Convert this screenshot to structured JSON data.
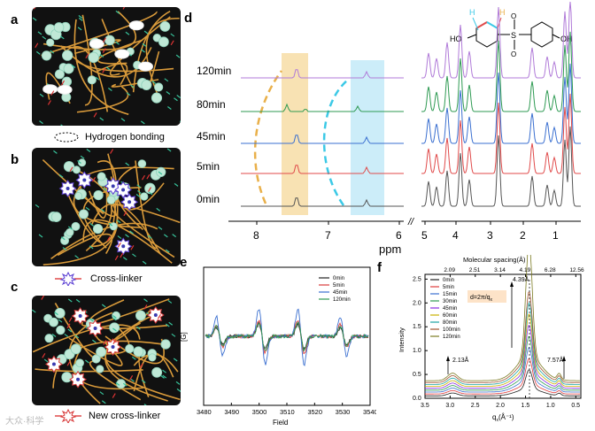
{
  "panels": {
    "a": {
      "letter": "a",
      "legend": "Hydrogen bonding",
      "oh": "OH"
    },
    "b": {
      "letter": "b",
      "legend": "Cross-linker"
    },
    "c": {
      "letter": "c",
      "legend": "New cross-linker"
    },
    "d": {
      "letter": "d",
      "xlabel": "ppm",
      "xticks_left": [
        "8",
        "7",
        "6",
        "5"
      ],
      "xticks_right": [
        "5",
        "4",
        "3",
        "2",
        "1"
      ],
      "times": [
        "120min",
        "80min",
        "45min",
        "5min",
        "0min"
      ],
      "molecule": {
        "h1": "H",
        "h2": "H",
        "ho": "HO",
        "oh": "OH",
        "s": "S",
        "o1": "O",
        "o2": "O"
      }
    },
    "e": {
      "letter": "e",
      "ylabel": "[G]",
      "xlabel": "Field",
      "xticks": [
        "3480",
        "3490",
        "3500",
        "3510",
        "3520",
        "3530",
        "3540"
      ],
      "legend": [
        "0min",
        "5min",
        "45min",
        "120min"
      ]
    },
    "f": {
      "letter": "f",
      "ylabel": "Intensity",
      "xlabel": "q",
      "xlabel_sub": "x",
      "xlabel_unit": "(Å⁻¹)",
      "top_label": "Molecular spacing(Å)",
      "top_ticks": [
        "2.09",
        "2.51",
        "3.14",
        "4.19",
        "6.28",
        "12.56"
      ],
      "xticks": [
        "3.5",
        "3.0",
        "2.5",
        "2.0",
        "1.5",
        "1.0",
        "0.5"
      ],
      "yticks": [
        "0.0",
        "0.5",
        "1.0",
        "1.5",
        "2.0",
        "2.5"
      ],
      "legend": [
        "0min",
        "5min",
        "15min",
        "30min",
        "45min",
        "60min",
        "80min",
        "100min",
        "120min"
      ],
      "formula_d": "d=2π/q",
      "formula_sub": "x",
      "annotations": [
        "4.39Å",
        "2.13Å",
        "7.57Å"
      ]
    }
  },
  "watermark": "大众·科学",
  "colors": {
    "orange": "#e9b04a",
    "cyan": "#3cc9e6",
    "gray": "#555",
    "red": "#e04a4a",
    "blue": "#3a6fd0",
    "green": "#2e9a52",
    "purple": "#b07ad8"
  },
  "chart_data": [
    {
      "type": "line",
      "panel": "d",
      "series": [
        {
          "name": "120min"
        },
        {
          "name": "80min"
        },
        {
          "name": "45min"
        },
        {
          "name": "5min"
        },
        {
          "name": "0min"
        }
      ],
      "xlabel": "ppm",
      "xlim": [
        8.4,
        1
      ]
    },
    {
      "type": "line",
      "panel": "e",
      "series": [
        {
          "name": "0min"
        },
        {
          "name": "5min"
        },
        {
          "name": "45min"
        },
        {
          "name": "120min"
        }
      ],
      "xlabel": "Field",
      "ylabel": "[G]",
      "xlim": [
        3480,
        3540
      ]
    },
    {
      "type": "line",
      "panel": "f",
      "series": [
        {
          "name": "0min"
        },
        {
          "name": "5min"
        },
        {
          "name": "15min"
        },
        {
          "name": "30min"
        },
        {
          "name": "45min"
        },
        {
          "name": "60min"
        },
        {
          "name": "80min"
        },
        {
          "name": "100min"
        },
        {
          "name": "120min"
        }
      ],
      "xlabel": "q(Å⁻¹)",
      "ylabel": "Intensity",
      "xlim": [
        3.5,
        0.4
      ],
      "ylim": [
        0,
        2.6
      ],
      "peak_q": 1.43,
      "peak_label": "4.39Å"
    }
  ]
}
